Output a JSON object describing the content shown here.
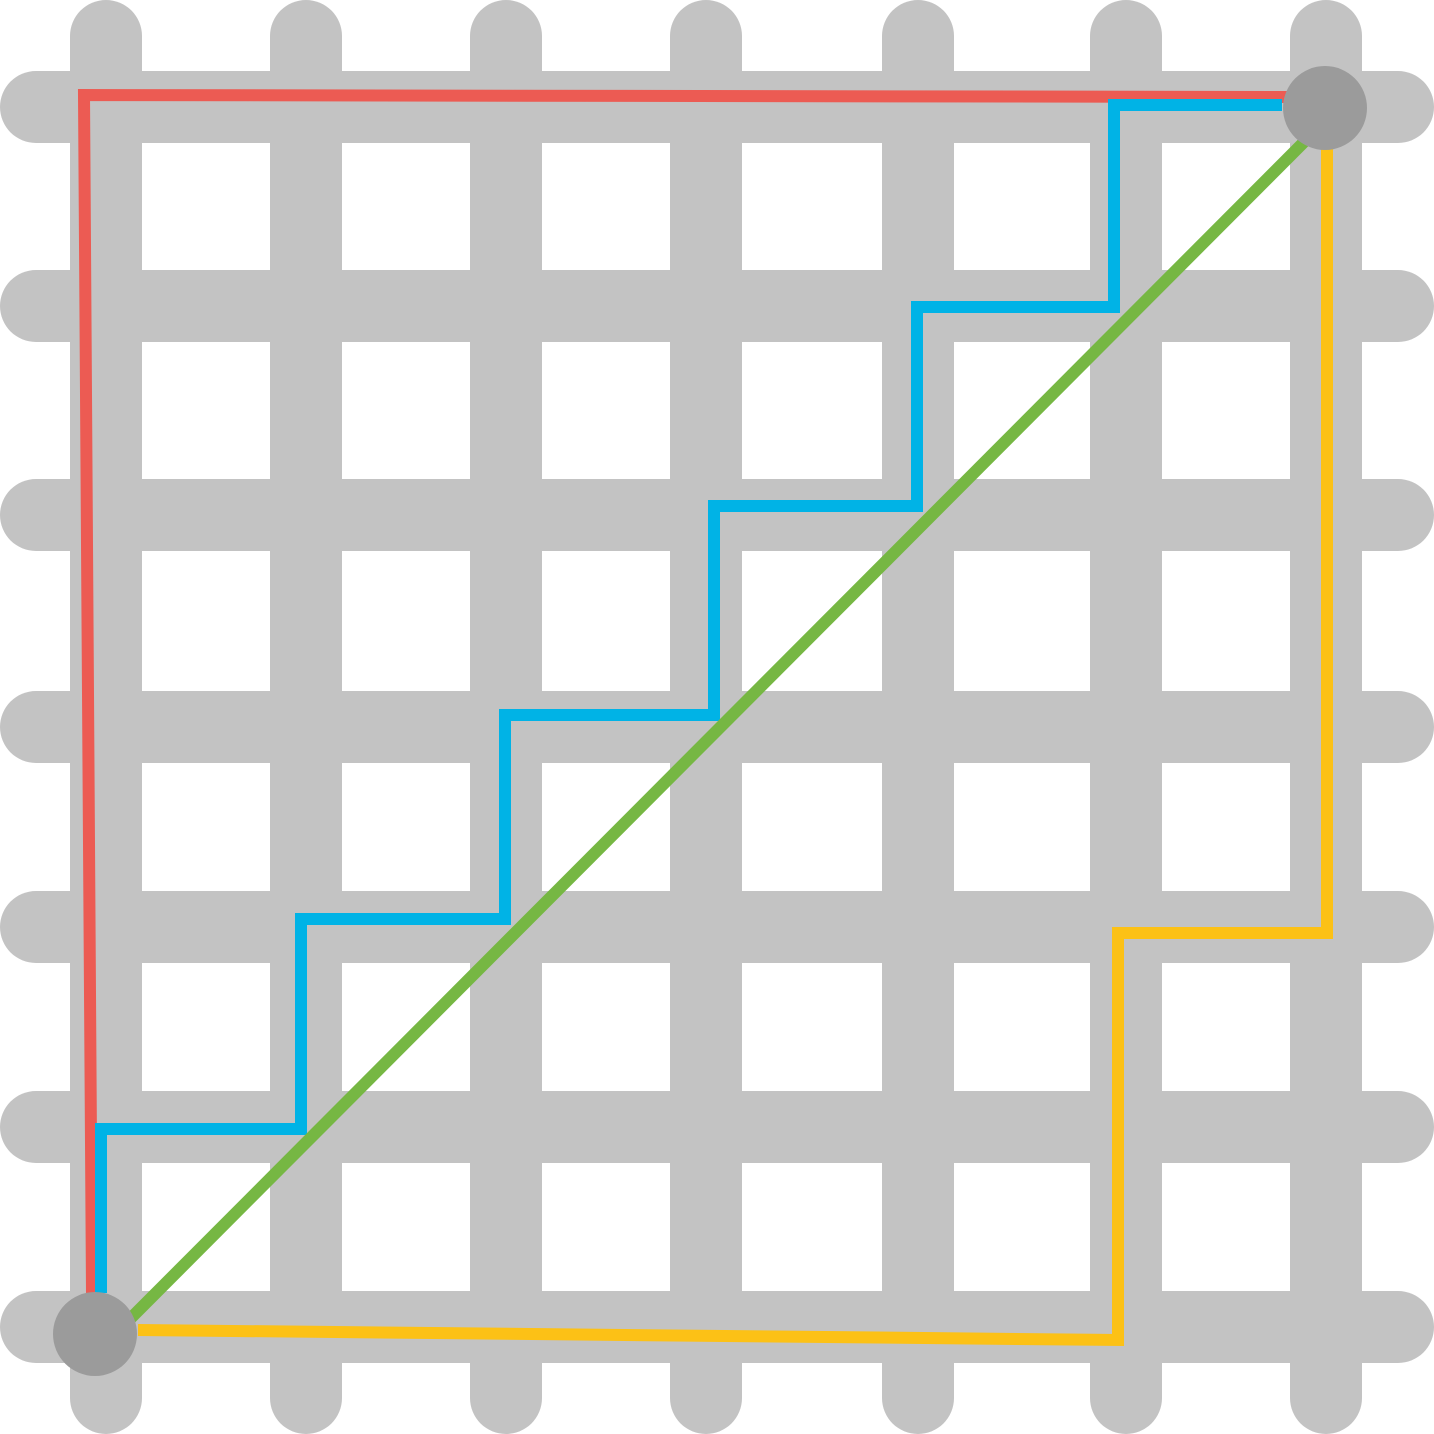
{
  "diagram": {
    "grid": {
      "columns": 7,
      "rows": 7,
      "color": "#c3c3c3",
      "background": "#ffffff"
    },
    "endpoints": [
      {
        "name": "start-node",
        "color": "#9b9b9b"
      },
      {
        "name": "end-node",
        "color": "#9b9b9b"
      }
    ],
    "paths": [
      {
        "name": "red-path",
        "color": "#ec5b53",
        "description_route": "up-then-right"
      },
      {
        "name": "blue-path",
        "color": "#00b3e6",
        "description_route": "staircase"
      },
      {
        "name": "green-path",
        "color": "#76b743",
        "description_route": "diagonal"
      },
      {
        "name": "yellow-path",
        "color": "#fcc116",
        "description_route": "right-then-up"
      }
    ]
  }
}
